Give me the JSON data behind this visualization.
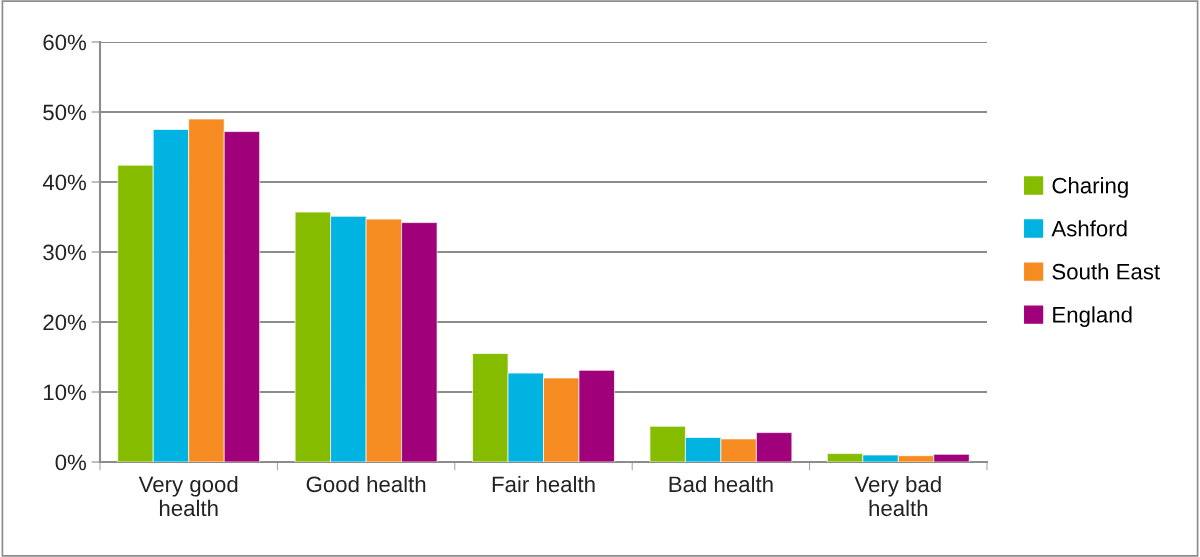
{
  "chart_data": {
    "type": "bar",
    "categories": [
      "Very good\nhealth",
      "Good health",
      "Fair health",
      "Bad health",
      "Very bad\nhealth"
    ],
    "series": [
      {
        "name": "Charing",
        "color": "#86bc00",
        "values": [
          42.4,
          35.7,
          15.5,
          5.1,
          1.2
        ]
      },
      {
        "name": "Ashford",
        "color": "#00b3e0",
        "values": [
          47.5,
          35.1,
          12.7,
          3.5,
          1.0
        ]
      },
      {
        "name": "South East",
        "color": "#f68b21",
        "values": [
          49.0,
          34.7,
          12.0,
          3.3,
          0.9
        ]
      },
      {
        "name": "England",
        "color": "#a0007a",
        "values": [
          47.2,
          34.2,
          13.1,
          4.2,
          1.1
        ]
      }
    ],
    "ylim": [
      0,
      60
    ],
    "yticks": [
      {
        "value": 0,
        "label": "0%"
      },
      {
        "value": 10,
        "label": "10%"
      },
      {
        "value": 20,
        "label": "20%"
      },
      {
        "value": 30,
        "label": "30%"
      },
      {
        "value": 40,
        "label": "40%"
      },
      {
        "value": 50,
        "label": "50%"
      },
      {
        "value": 60,
        "label": "60%"
      }
    ],
    "grid": "y",
    "legend": "right"
  }
}
